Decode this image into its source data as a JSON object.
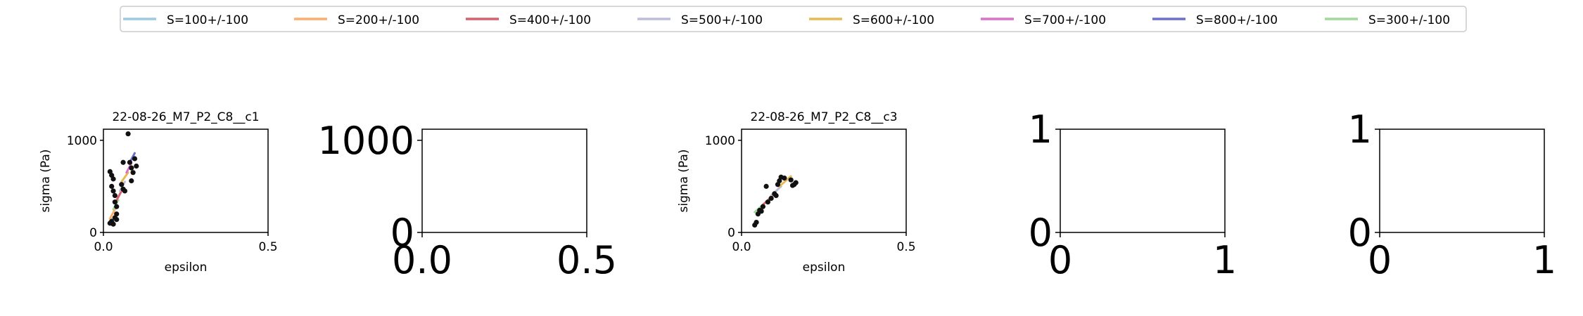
{
  "chart_data": {
    "type": "scatter",
    "legend": {
      "placement": "top",
      "entries": [
        {
          "name": "S=100+/-100",
          "color": "#9ecae1"
        },
        {
          "name": "S=200+/-100",
          "color": "#fdae6b"
        },
        {
          "name": "S=400+/-100",
          "color": "#d6616b"
        },
        {
          "name": "S=500+/-100",
          "color": "#bcbddc"
        },
        {
          "name": "S=600+/-100",
          "color": "#e7ba52"
        },
        {
          "name": "S=700+/-100",
          "color": "#de6fca"
        },
        {
          "name": "S=800+/-100",
          "color": "#6b6ecf"
        },
        {
          "name": "S=300+/-100",
          "color": "#a1d99b"
        }
      ]
    },
    "panels": [
      {
        "title": "22-08-26_M7_P2_C8__c1",
        "xlabel": "epsilon",
        "ylabel": "sigma (Pa)",
        "xlim": [
          0,
          0.5
        ],
        "ylim": [
          0,
          1120
        ],
        "xticks": [
          "0.0",
          "0.5"
        ],
        "xtick_values": [
          0,
          0.5
        ],
        "yticks": [
          "0",
          "1000"
        ],
        "ytick_values": [
          0,
          1000
        ],
        "points": [
          [
            0.02,
            660
          ],
          [
            0.025,
            620
          ],
          [
            0.03,
            580
          ],
          [
            0.025,
            500
          ],
          [
            0.03,
            450
          ],
          [
            0.035,
            400
          ],
          [
            0.035,
            330
          ],
          [
            0.04,
            280
          ],
          [
            0.04,
            200
          ],
          [
            0.035,
            160
          ],
          [
            0.025,
            120
          ],
          [
            0.02,
            100
          ],
          [
            0.03,
            90
          ],
          [
            0.04,
            140
          ],
          [
            0.055,
            520
          ],
          [
            0.06,
            470
          ],
          [
            0.065,
            450
          ],
          [
            0.06,
            760
          ],
          [
            0.075,
            1070
          ],
          [
            0.08,
            760
          ],
          [
            0.085,
            700
          ],
          [
            0.09,
            650
          ],
          [
            0.1,
            720
          ],
          [
            0.095,
            800
          ],
          [
            0.085,
            560
          ]
        ],
        "series": [
          {
            "name": "S=100+/-100",
            "x": [
              0.015,
              0.025
            ],
            "y": [
              100,
              150
            ]
          },
          {
            "name": "S=200+/-100",
            "x": [
              0.02,
              0.035
            ],
            "y": [
              150,
              250
            ]
          },
          {
            "name": "S=300+/-100",
            "x": [
              0.03,
              0.045
            ],
            "y": [
              250,
              350
            ]
          },
          {
            "name": "S=400+/-100",
            "x": [
              0.04,
              0.055
            ],
            "y": [
              350,
              450
            ]
          },
          {
            "name": "S=500+/-100",
            "x": [
              0.05,
              0.065
            ],
            "y": [
              450,
              550
            ]
          },
          {
            "name": "S=600+/-100",
            "x": [
              0.055,
              0.075
            ],
            "y": [
              550,
              650
            ]
          },
          {
            "name": "S=700+/-100",
            "x": [
              0.07,
              0.085
            ],
            "y": [
              650,
              750
            ]
          },
          {
            "name": "S=800+/-100",
            "x": [
              0.08,
              0.095
            ],
            "y": [
              760,
              860
            ]
          }
        ]
      },
      {
        "title": "",
        "xlim": [
          0,
          0.5
        ],
        "ylim": [
          0,
          1120
        ],
        "xticks": [
          "0.0",
          "0.5"
        ],
        "xtick_values": [
          0,
          0.5
        ],
        "yticks": [
          "0",
          "1000"
        ],
        "ytick_values": [
          0,
          1000
        ],
        "points": [],
        "series": []
      },
      {
        "title": "22-08-26_M7_P2_C8__c3",
        "xlabel": "epsilon",
        "ylabel": "sigma (Pa)",
        "xlim": [
          0,
          0.5
        ],
        "ylim": [
          0,
          1120
        ],
        "xticks": [
          "0.0",
          "0.5"
        ],
        "xtick_values": [
          0,
          0.5
        ],
        "yticks": [
          "0",
          "1000"
        ],
        "ytick_values": [
          0,
          1000
        ],
        "points": [
          [
            0.04,
            80
          ],
          [
            0.045,
            110
          ],
          [
            0.05,
            200
          ],
          [
            0.055,
            240
          ],
          [
            0.06,
            230
          ],
          [
            0.065,
            280
          ],
          [
            0.075,
            500
          ],
          [
            0.08,
            330
          ],
          [
            0.09,
            370
          ],
          [
            0.1,
            420
          ],
          [
            0.105,
            400
          ],
          [
            0.11,
            520
          ],
          [
            0.115,
            560
          ],
          [
            0.12,
            600
          ],
          [
            0.13,
            590
          ],
          [
            0.15,
            570
          ],
          [
            0.155,
            510
          ],
          [
            0.16,
            520
          ],
          [
            0.165,
            540
          ]
        ],
        "series": [
          {
            "name": "S=300+/-100",
            "x": [
              0.04,
              0.065
            ],
            "y": [
              220,
              300
            ]
          },
          {
            "name": "S=400+/-100",
            "x": [
              0.065,
              0.095
            ],
            "y": [
              300,
              400
            ]
          },
          {
            "name": "S=500+/-100",
            "x": [
              0.09,
              0.12
            ],
            "y": [
              400,
              500
            ]
          },
          {
            "name": "S=600+/-100",
            "x": [
              0.115,
              0.15
            ],
            "y": [
              500,
              610
            ]
          }
        ]
      },
      {
        "title": "",
        "xlim": [
          0,
          1
        ],
        "ylim": [
          0,
          1
        ],
        "xticks": [
          "0",
          "1"
        ],
        "xtick_values": [
          0,
          1
        ],
        "yticks": [
          "0",
          "1"
        ],
        "ytick_values": [
          0,
          1
        ],
        "points": [],
        "series": []
      },
      {
        "title": "",
        "xlim": [
          0,
          1
        ],
        "ylim": [
          0,
          1
        ],
        "xticks": [
          "0",
          "1"
        ],
        "xtick_values": [
          0,
          1
        ],
        "yticks": [
          "0",
          "1"
        ],
        "ytick_values": [
          0,
          1
        ],
        "points": [],
        "series": []
      }
    ]
  }
}
